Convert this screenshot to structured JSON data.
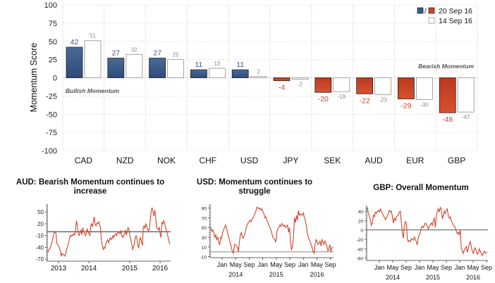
{
  "chart_data": [
    {
      "type": "bar",
      "title": "",
      "xlabel": "",
      "ylabel": "Momentum Score",
      "ylim": [
        -100,
        100
      ],
      "yticks": [
        100,
        75,
        50,
        25,
        0,
        -25,
        -50,
        -75,
        -100
      ],
      "grid": true,
      "categories": [
        "CAD",
        "NZD",
        "NOK",
        "CHF",
        "USD",
        "JPY",
        "SEK",
        "AUD",
        "EUR",
        "GBP"
      ],
      "series": [
        {
          "name": "20 Sep 16",
          "values": [
            42,
            27,
            27,
            11,
            11,
            -4,
            -20,
            -22,
            -29,
            -48
          ]
        },
        {
          "name": "14 Sep 16",
          "values": [
            51,
            32,
            25,
            13,
            2,
            -2,
            -19,
            -23,
            -30,
            -47
          ]
        }
      ],
      "legend": {
        "position": "top-right",
        "entries": [
          "20 Sep 16",
          "14 Sep 16"
        ],
        "separator": "/"
      },
      "annotations": [
        "Bullish Momentum",
        "Bearish Momentum"
      ],
      "colors": {
        "positive": "#3d5a87",
        "negative": "#c9442a",
        "previous": "#ffffff",
        "previous_border": "#9a9a9a",
        "positive_label": "#3d5a87",
        "negative_label": "#d0452a",
        "previous_label": "#888888"
      }
    },
    {
      "type": "line",
      "title": "AUD: Bearish Momentum continues to increase",
      "ylim": [
        -75,
        70
      ],
      "yticks": [
        50,
        20,
        -10,
        -40,
        -70
      ],
      "xticks": [
        "2013",
        "2014",
        "2015",
        "2016"
      ],
      "reference_line": 0,
      "series": [
        {
          "name": "AUD",
          "values": [
            -52,
            -45,
            -44,
            -38,
            -30,
            -22,
            -10,
            -3,
            0,
            -5,
            -30,
            -33,
            -38,
            -42,
            -50,
            -63,
            -55,
            -58,
            -60,
            -62,
            -55,
            -45,
            -38,
            -30,
            -20,
            -10,
            -12,
            -8,
            -10,
            -5,
            -8,
            5,
            28,
            15,
            -5,
            -10,
            -2,
            5,
            -8,
            10,
            2,
            -3,
            -10,
            -5,
            8,
            0,
            -5,
            -10,
            15,
            20,
            12,
            25,
            38,
            18,
            15,
            22,
            20,
            25,
            20,
            10,
            -20,
            -35,
            -45,
            -40,
            -42,
            -30,
            -25,
            -20,
            -28,
            -22,
            -15,
            -20,
            -18,
            -10,
            -15,
            -8,
            -5,
            -10,
            -5,
            0,
            -3,
            -5,
            2,
            -8,
            -15,
            -10,
            -5,
            5,
            -8,
            0,
            10,
            5,
            -10,
            -20,
            -30,
            -45,
            -40,
            -30,
            -15,
            -10,
            -20,
            -35,
            -42,
            -20,
            -15,
            -25,
            -35,
            10,
            15,
            8,
            20,
            15,
            5,
            2,
            10,
            30,
            55,
            60,
            50,
            40,
            55,
            35,
            10,
            8,
            5,
            12,
            -5,
            -15,
            25,
            20,
            28,
            22,
            10,
            5,
            -5,
            -15,
            -25,
            -32
          ]
        }
      ],
      "colors": {
        "line": "#d0452a",
        "reference": "#222222"
      }
    },
    {
      "type": "line",
      "title": "USD: Momentum continues to struggle",
      "ylim": [
        -12,
        98
      ],
      "yticks": [
        90,
        70,
        50,
        30,
        10,
        -10
      ],
      "xticks": [
        "Jan",
        "May",
        "Sep",
        "Jan",
        "May",
        "Sep",
        "Jan",
        "May",
        "Sep"
      ],
      "xticks_year": [
        "2014",
        "2015",
        "2016"
      ],
      "reference_line": 0,
      "series": [
        {
          "name": "USD",
          "values": [
            50,
            42,
            45,
            38,
            30,
            35,
            25,
            30,
            20,
            15,
            30,
            28,
            40,
            45,
            50,
            55,
            48,
            40,
            30,
            25,
            15,
            8,
            0,
            -3,
            15,
            15,
            12,
            10,
            0,
            20,
            35,
            40,
            30,
            28,
            35,
            40,
            50,
            55,
            60,
            62,
            65,
            62,
            68,
            70,
            75,
            80,
            85,
            92,
            90,
            88,
            90,
            86,
            88,
            82,
            78,
            70,
            72,
            65,
            60,
            55,
            50,
            45,
            38,
            30,
            28,
            25,
            20,
            40,
            48,
            50,
            55,
            52,
            58,
            55,
            52,
            55,
            50,
            52,
            55,
            40,
            50,
            20,
            5,
            10,
            30,
            70,
            60,
            75,
            65,
            85,
            75,
            78,
            76,
            75,
            80,
            72,
            65,
            55,
            40,
            30,
            25,
            20,
            15,
            8,
            0,
            -3,
            15,
            25,
            20,
            15,
            18,
            22,
            12,
            25,
            20,
            15,
            22,
            18,
            10,
            2,
            5,
            15,
            0,
            8,
            10
          ]
        }
      ],
      "colors": {
        "line": "#d0452a",
        "reference": "#888888"
      }
    },
    {
      "type": "line",
      "title": "GBP: Overall Momentum",
      "ylim": [
        -65,
        52
      ],
      "yticks": [
        40,
        20,
        0,
        -20,
        -40,
        -60
      ],
      "xticks": [
        "Jan",
        "May",
        "Sep",
        "Jan",
        "May",
        "Sep",
        "Jan",
        "May",
        "Sep"
      ],
      "xticks_year": [
        "2014",
        "2015",
        "2016"
      ],
      "reference_line": 0,
      "series": [
        {
          "name": "GBP",
          "values": [
            48,
            35,
            30,
            20,
            10,
            15,
            32,
            28,
            38,
            35,
            40,
            42,
            38,
            45,
            40,
            35,
            30,
            28,
            22,
            25,
            30,
            35,
            42,
            38,
            40,
            30,
            15,
            25,
            20,
            28,
            30,
            32,
            38,
            40,
            15,
            -5,
            -18,
            10,
            18,
            15,
            -20,
            -25,
            -22,
            -25,
            -18,
            -20,
            -22,
            -15,
            -20,
            -25,
            -32,
            -15,
            -10,
            -5,
            5,
            8,
            5,
            10,
            15,
            12,
            8,
            2,
            5,
            12,
            15,
            10,
            20,
            25,
            5,
            30,
            40,
            45,
            38,
            48,
            44,
            25,
            30,
            40,
            35,
            42,
            45,
            30,
            25,
            28,
            20,
            15,
            10,
            8,
            5,
            -2,
            -8,
            -5,
            -10,
            0,
            -40,
            -45,
            -50,
            -42,
            -40,
            -35,
            -48,
            -40,
            -30,
            -25,
            -35,
            -45,
            -50,
            -42,
            -38,
            -45,
            -52,
            -48,
            -40,
            -45,
            -50,
            -55,
            -48,
            -45,
            -50,
            -48,
            -47
          ]
        }
      ],
      "colors": {
        "line": "#d0452a",
        "reference": "#555555"
      }
    }
  ]
}
